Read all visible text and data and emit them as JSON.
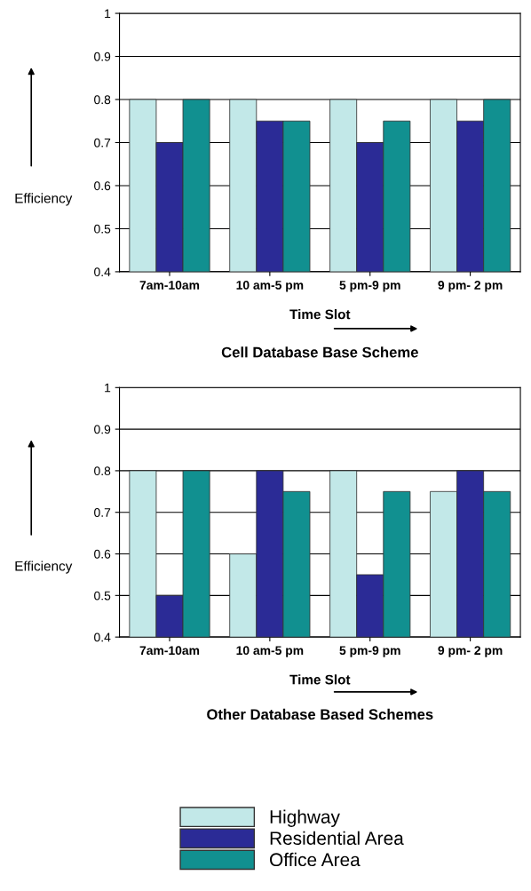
{
  "chart_data": [
    {
      "type": "bar",
      "title": "Cell Database Base Scheme",
      "xlabel": "Time Slot",
      "ylabel": "Efficiency",
      "categories": [
        "7am-10am",
        "10 am-5 pm",
        "5 pm-9 pm",
        "9 pm- 2 pm"
      ],
      "series": [
        {
          "color": "#c2e8e8",
          "values": [
            0.8,
            0.8,
            0.8,
            0.8
          ]
        },
        {
          "color": "#2b2b96",
          "values": [
            0.7,
            0.75,
            0.7,
            0.75
          ]
        },
        {
          "color": "#119090",
          "values": [
            0.8,
            0.75,
            0.75,
            0.8
          ]
        }
      ],
      "ylim": [
        0.4,
        1
      ],
      "yticks": [
        0.4,
        0.5,
        0.6,
        0.7,
        0.8,
        0.9,
        1
      ],
      "grid": "y",
      "legend": false
    },
    {
      "type": "bar",
      "title": "Other Database Based Schemes",
      "xlabel": "Time Slot",
      "ylabel": "Efficiency",
      "categories": [
        "7am-10am",
        "10 am-5 pm",
        "5 pm-9 pm",
        "9 pm- 2 pm"
      ],
      "series": [
        {
          "name": "Highway",
          "color": "#c2e8e8",
          "values": [
            0.8,
            0.6,
            0.8,
            0.75
          ]
        },
        {
          "name": "Residential Area",
          "color": "#2b2b96",
          "values": [
            0.5,
            0.8,
            0.55,
            0.8
          ]
        },
        {
          "name": "Office Area",
          "color": "#119090",
          "values": [
            0.8,
            0.75,
            0.75,
            0.75
          ]
        }
      ],
      "ylim": [
        0.4,
        1
      ],
      "yticks": [
        0.4,
        0.5,
        0.6,
        0.7,
        0.8,
        0.9,
        1
      ],
      "grid": "y",
      "legend": "bottom"
    }
  ]
}
